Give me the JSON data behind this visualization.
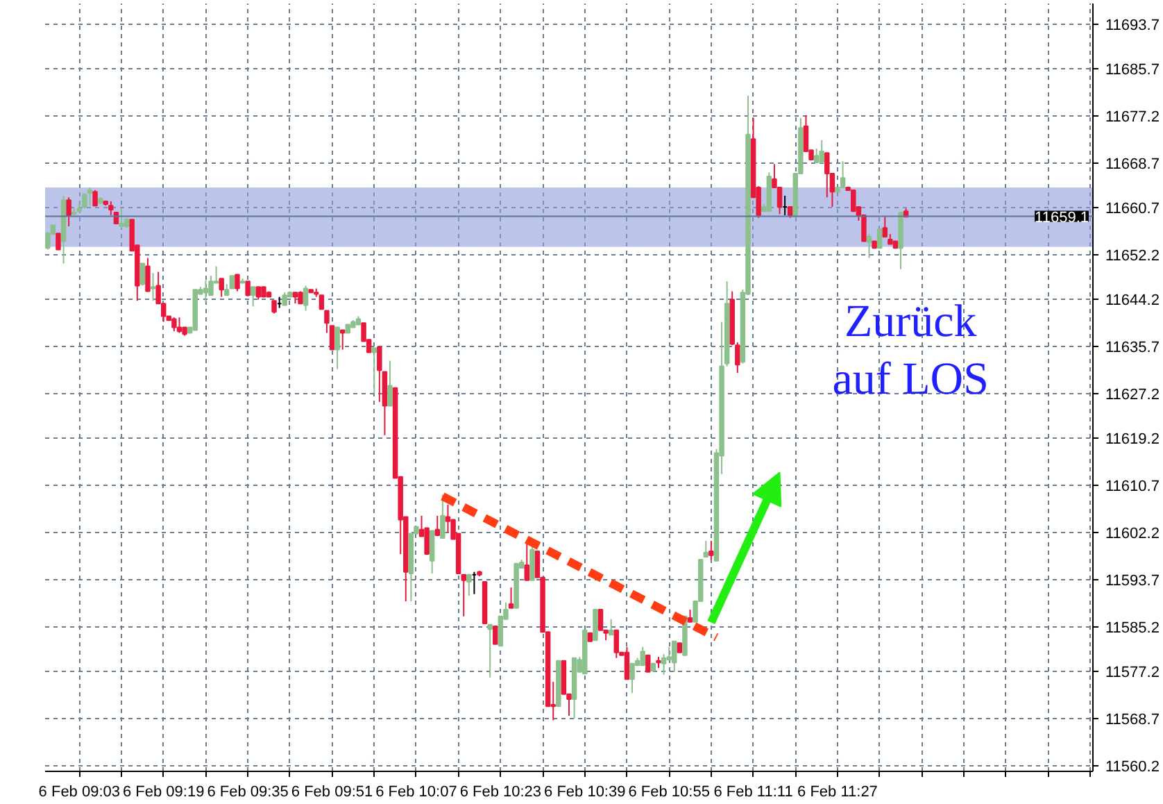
{
  "chart_data": {
    "type": "candlestick",
    "categories": [
      null,
      null,
      null,
      null,
      null,
      null,
      "6 Feb 09:03",
      null,
      null,
      null,
      null,
      null,
      null,
      null,
      null,
      null,
      null,
      null,
      null,
      null,
      null,
      null,
      "6 Feb 09:19",
      null,
      null,
      null,
      null,
      null,
      null,
      null,
      null,
      null,
      null,
      null,
      null,
      null,
      null,
      null,
      "6 Feb 09:35",
      null,
      null,
      null,
      null,
      null,
      null,
      null,
      null,
      null,
      null,
      null,
      null,
      null,
      null,
      null,
      "6 Feb 09:51",
      null,
      null,
      null,
      null,
      null,
      null,
      null,
      null,
      null,
      null,
      null,
      null,
      null,
      null,
      null,
      "6 Feb 10:07",
      null,
      null,
      null,
      null,
      null,
      null,
      null,
      null,
      null,
      null,
      null,
      null,
      null,
      null,
      null,
      "6 Feb 10:23",
      null,
      null,
      null,
      null,
      null,
      null,
      null,
      null,
      null,
      null,
      null,
      null,
      null,
      null,
      null,
      "6 Feb 10:39",
      null,
      null,
      null,
      null,
      null,
      null,
      null,
      null,
      null,
      null,
      null,
      null,
      null,
      null,
      null,
      "6 Feb 10:55",
      null,
      null,
      null,
      null,
      null,
      null,
      null,
      null,
      null,
      null,
      null,
      null,
      null,
      null,
      null,
      "6 Feb 11:11",
      null,
      null,
      null,
      null,
      null,
      null,
      null,
      null,
      null,
      null,
      null,
      null,
      null,
      null,
      null,
      "6 Feb 11:27",
      null,
      null,
      null,
      null,
      null,
      null,
      null,
      null,
      null,
      null,
      null,
      null,
      null,
      null,
      null,
      null,
      null,
      null,
      null,
      null,
      null,
      null,
      null,
      null,
      null,
      null,
      null,
      null,
      null,
      null,
      null,
      null,
      null,
      null,
      null,
      null,
      null,
      null,
      null,
      null,
      null,
      null,
      null,
      null,
      null,
      null,
      null,
      null
    ],
    "ohlc": [
      [
        11653.4,
        11656.3,
        11653.1,
        11656.0
      ],
      [
        11655.9,
        11657.5,
        11655.9,
        11657.5
      ],
      [
        11656.0,
        11656.0,
        11653.1,
        11653.1
      ],
      [
        11654.6,
        11662.8,
        11650.6,
        11662.0
      ],
      [
        11662.0,
        11662.5,
        11657.3,
        11659.3
      ],
      [
        11659.5,
        11660.5,
        11659.3,
        11659.8
      ],
      [
        11660.0,
        11661.8,
        11659.8,
        11660.5
      ],
      [
        11660.8,
        11663.3,
        11660.5,
        11663.0
      ],
      [
        11663.3,
        11664.3,
        11661.0,
        11663.8
      ],
      [
        11663.5,
        11663.8,
        11661.0,
        11661.0
      ],
      [
        11661.5,
        11662.5,
        11661.3,
        11662.3
      ],
      [
        11661.8,
        11661.8,
        11661.0,
        11661.3
      ],
      [
        11661.0,
        11661.8,
        11659.3,
        11660.3
      ],
      [
        11659.8,
        11659.8,
        11657.8,
        11657.8
      ],
      [
        11657.3,
        11660.5,
        11657.0,
        11657.8
      ],
      [
        11657.3,
        11658.8,
        11657.0,
        11658.5
      ],
      [
        11658.5,
        11658.5,
        11652.9,
        11652.9
      ],
      [
        11653.9,
        11653.9,
        11643.9,
        11646.6
      ],
      [
        11646.9,
        11650.6,
        11646.6,
        11650.6
      ],
      [
        11650.1,
        11651.6,
        11645.6,
        11645.6
      ],
      [
        11646.1,
        11648.9,
        11643.9,
        11646.4
      ],
      [
        11646.6,
        11649.1,
        11643.4,
        11643.4
      ],
      [
        11643.4,
        11643.4,
        11640.1,
        11641.1
      ],
      [
        11641.1,
        11641.1,
        11640.4,
        11640.4
      ],
      [
        11640.6,
        11640.9,
        11638.4,
        11639.1
      ],
      [
        11639.1,
        11640.9,
        11638.1,
        11638.4
      ],
      [
        11639.1,
        11639.1,
        11637.6,
        11637.9
      ],
      [
        11638.1,
        11639.1,
        11638.1,
        11639.1
      ],
      [
        11638.6,
        11645.9,
        11638.6,
        11645.9
      ],
      [
        11645.1,
        11646.4,
        11645.1,
        11645.9
      ],
      [
        11645.4,
        11647.6,
        11643.6,
        11646.1
      ],
      [
        11644.9,
        11648.4,
        11644.9,
        11647.4
      ],
      [
        11647.1,
        11650.1,
        11647.1,
        11647.4
      ],
      [
        11647.9,
        11647.9,
        11644.6,
        11645.9
      ],
      [
        11644.9,
        11646.9,
        11644.9,
        11645.9
      ],
      [
        11646.1,
        11648.4,
        11646.1,
        11648.4
      ],
      [
        11648.6,
        11648.6,
        11645.6,
        11646.1
      ],
      [
        11647.1,
        11647.9,
        11647.1,
        11647.4
      ],
      [
        11647.4,
        11647.4,
        11644.9,
        11644.9
      ],
      [
        11644.9,
        11646.4,
        11642.9,
        11646.4
      ],
      [
        11646.4,
        11646.4,
        11644.1,
        11644.6
      ],
      [
        11646.4,
        11646.4,
        11644.6,
        11644.6
      ],
      [
        11645.4,
        11645.6,
        11644.6,
        11644.6
      ],
      [
        11643.9,
        11643.9,
        11641.6,
        11641.9
      ],
      [
        11643.4,
        11644.6,
        11642.6,
        11643.4
      ],
      [
        11643.1,
        11645.4,
        11643.1,
        11644.9
      ],
      [
        11644.6,
        11645.6,
        11644.6,
        11645.4
      ],
      [
        11645.4,
        11645.4,
        11643.4,
        11644.6
      ],
      [
        11645.4,
        11645.6,
        11643.4,
        11643.4
      ],
      [
        11643.1,
        11646.6,
        11642.1,
        11646.1
      ],
      [
        11645.9,
        11645.9,
        11645.4,
        11645.4
      ],
      [
        11645.4,
        11646.1,
        11644.6,
        11645.1
      ],
      [
        11644.9,
        11644.9,
        11642.4,
        11642.4
      ],
      [
        11642.1,
        11642.1,
        11638.1,
        11639.9
      ],
      [
        11639.4,
        11639.4,
        11635.1,
        11635.1
      ],
      [
        11635.1,
        11639.1,
        11631.6,
        11639.1
      ],
      [
        11638.6,
        11638.6,
        11635.1,
        11638.1
      ],
      [
        11638.1,
        11639.6,
        11638.1,
        11639.6
      ],
      [
        11639.1,
        11640.4,
        11639.1,
        11640.1
      ],
      [
        11639.6,
        11641.1,
        11639.6,
        11640.6
      ],
      [
        11639.9,
        11639.9,
        11636.6,
        11636.6
      ],
      [
        11636.9,
        11636.9,
        11634.6,
        11634.6
      ],
      [
        11634.6,
        11635.4,
        11627.2,
        11635.4
      ],
      [
        11635.6,
        11635.6,
        11625.7,
        11631.4
      ],
      [
        11631.1,
        11631.1,
        11619.7,
        11625.0
      ],
      [
        11625.0,
        11633.1,
        11625.0,
        11628.6
      ],
      [
        11628.2,
        11628.2,
        11612.0,
        11612.0
      ],
      [
        11612.2,
        11612.2,
        11598.3,
        11604.5
      ],
      [
        11605.0,
        11605.0,
        11589.8,
        11595.1
      ],
      [
        11594.8,
        11602.0,
        11589.8,
        11602.0
      ],
      [
        11602.0,
        11603.2,
        11602.0,
        11603.2
      ],
      [
        11602.7,
        11605.2,
        11601.5,
        11601.5
      ],
      [
        11603.0,
        11603.0,
        11598.3,
        11598.3
      ],
      [
        11597.1,
        11602.5,
        11594.8,
        11602.5
      ],
      [
        11602.7,
        11605.2,
        11601.7,
        11601.7
      ],
      [
        11601.2,
        11609.0,
        11601.2,
        11605.2
      ],
      [
        11605.0,
        11607.2,
        11602.2,
        11604.2
      ],
      [
        11604.5,
        11604.5,
        11601.0,
        11601.0
      ],
      [
        11602.0,
        11602.0,
        11594.8,
        11594.8
      ],
      [
        11594.6,
        11594.6,
        11587.1,
        11593.6
      ],
      [
        11593.3,
        11594.6,
        11590.8,
        11594.6
      ],
      [
        11594.6,
        11595.1,
        11591.1,
        11594.6
      ],
      [
        11595.1,
        11595.3,
        11594.3,
        11594.6
      ],
      [
        11593.3,
        11593.3,
        11585.8,
        11585.8
      ],
      [
        11584.8,
        11585.6,
        11576.1,
        11585.6
      ],
      [
        11585.3,
        11585.3,
        11582.1,
        11582.1
      ],
      [
        11581.8,
        11587.1,
        11581.8,
        11587.1
      ],
      [
        11586.6,
        11589.6,
        11586.6,
        11588.3
      ],
      [
        11589.3,
        11592.3,
        11588.6,
        11588.6
      ],
      [
        11588.6,
        11596.6,
        11588.6,
        11596.6
      ],
      [
        11595.8,
        11597.3,
        11595.8,
        11596.8
      ],
      [
        11596.3,
        11600.3,
        11593.6,
        11593.6
      ],
      [
        11593.6,
        11599.6,
        11593.6,
        11599.1
      ],
      [
        11598.8,
        11598.8,
        11594.1,
        11594.1
      ],
      [
        11594.1,
        11594.1,
        11584.3,
        11584.3
      ],
      [
        11584.3,
        11584.3,
        11570.9,
        11570.9
      ],
      [
        11571.2,
        11575.3,
        11568.4,
        11570.9
      ],
      [
        11570.9,
        11579.1,
        11570.9,
        11579.1
      ],
      [
        11579.1,
        11579.1,
        11573.1,
        11573.1
      ],
      [
        11573.1,
        11573.1,
        11569.2,
        11572.2
      ],
      [
        11572.2,
        11579.6,
        11568.7,
        11579.6
      ],
      [
        11577.1,
        11579.8,
        11577.1,
        11579.3
      ],
      [
        11576.8,
        11584.6,
        11576.8,
        11584.6
      ],
      [
        11584.1,
        11584.1,
        11582.6,
        11582.6
      ],
      [
        11582.8,
        11588.3,
        11582.8,
        11588.3
      ],
      [
        11588.3,
        11588.3,
        11584.6,
        11584.6
      ],
      [
        11584.6,
        11584.6,
        11582.8,
        11584.1
      ],
      [
        11583.8,
        11586.6,
        11583.8,
        11584.6
      ],
      [
        11584.6,
        11584.6,
        11579.6,
        11580.6
      ],
      [
        11580.6,
        11580.6,
        11580.1,
        11580.1
      ],
      [
        11580.6,
        11581.6,
        11575.8,
        11575.8
      ],
      [
        11575.8,
        11578.6,
        11573.3,
        11578.6
      ],
      [
        11578.3,
        11579.6,
        11578.3,
        11579.1
      ],
      [
        11578.3,
        11581.6,
        11578.3,
        11580.8
      ],
      [
        11580.1,
        11580.1,
        11577.1,
        11577.1
      ],
      [
        11577.3,
        11578.6,
        11577.3,
        11578.6
      ],
      [
        11579.1,
        11579.8,
        11577.8,
        11578.8
      ],
      [
        11578.6,
        11580.3,
        11576.6,
        11579.6
      ],
      [
        11579.3,
        11581.6,
        11579.3,
        11579.8
      ],
      [
        11578.8,
        11582.6,
        11577.1,
        11582.6
      ],
      [
        11582.3,
        11582.3,
        11580.6,
        11580.6
      ],
      [
        11580.1,
        11587.1,
        11580.1,
        11587.1
      ],
      [
        11586.8,
        11588.3,
        11586.1,
        11586.1
      ],
      [
        11586.1,
        11589.8,
        11586.1,
        11589.8
      ],
      [
        11589.8,
        11597.3,
        11589.8,
        11597.3
      ],
      [
        11597.8,
        11600.7,
        11597.8,
        11598.6
      ],
      [
        11598.8,
        11600.7,
        11597.3,
        11598.1
      ],
      [
        11597.1,
        11617.2,
        11597.1,
        11616.5
      ],
      [
        11616.0,
        11640.1,
        11612.7,
        11632.1
      ],
      [
        11632.6,
        11647.4,
        11632.1,
        11643.4
      ],
      [
        11644.1,
        11645.6,
        11635.9,
        11636.1
      ],
      [
        11635.9,
        11636.4,
        11630.9,
        11632.4
      ],
      [
        11632.9,
        11645.9,
        11632.6,
        11645.4
      ],
      [
        11645.1,
        11680.8,
        11644.9,
        11673.8
      ],
      [
        11673.0,
        11676.8,
        11662.5,
        11662.5
      ],
      [
        11664.3,
        11664.5,
        11658.8,
        11659.3
      ],
      [
        11660.0,
        11661.3,
        11660.0,
        11660.8
      ],
      [
        11660.0,
        11667.0,
        11660.0,
        11666.3
      ],
      [
        11665.8,
        11668.5,
        11664.3,
        11664.3
      ],
      [
        11664.3,
        11664.3,
        11659.5,
        11660.8
      ],
      [
        11660.8,
        11662.8,
        11659.3,
        11660.8
      ],
      [
        11660.8,
        11660.8,
        11658.8,
        11659.3
      ],
      [
        11659.3,
        11666.8,
        11658.8,
        11666.8
      ],
      [
        11666.8,
        11676.8,
        11666.8,
        11675.0
      ],
      [
        11675.3,
        11677.3,
        11670.8,
        11670.8
      ],
      [
        11671.0,
        11671.0,
        11669.3,
        11669.3
      ],
      [
        11668.8,
        11671.3,
        11668.8,
        11670.0
      ],
      [
        11668.8,
        11672.8,
        11668.8,
        11670.8
      ],
      [
        11670.5,
        11670.5,
        11662.5,
        11666.8
      ],
      [
        11666.8,
        11666.8,
        11660.8,
        11663.5
      ],
      [
        11663.5,
        11664.3,
        11663.5,
        11664.3
      ],
      [
        11664.3,
        11669.0,
        11664.3,
        11666.0
      ],
      [
        11664.3,
        11664.3,
        11663.8,
        11663.8
      ],
      [
        11663.8,
        11663.8,
        11660.0,
        11660.0
      ],
      [
        11660.8,
        11660.8,
        11658.3,
        11659.3
      ],
      [
        11659.3,
        11659.3,
        11654.6,
        11654.6
      ],
      [
        11654.4,
        11655.9,
        11651.6,
        11655.4
      ],
      [
        11654.6,
        11654.6,
        11653.4,
        11653.4
      ],
      [
        11653.4,
        11656.8,
        11653.4,
        11656.8
      ],
      [
        11657.0,
        11659.0,
        11655.4,
        11655.4
      ],
      [
        11654.9,
        11655.9,
        11654.1,
        11654.1
      ],
      [
        11654.6,
        11654.6,
        11653.4,
        11653.4
      ],
      [
        11653.4,
        11659.8,
        11649.6,
        11659.8
      ],
      [
        11660.0,
        11660.5,
        11659.0,
        11659.0
      ],
      null,
      null,
      null,
      null,
      null,
      null,
      null,
      null,
      null,
      null,
      null,
      null,
      null,
      null,
      null,
      null,
      null,
      null,
      null,
      null,
      null,
      null,
      null,
      null,
      null,
      null,
      null,
      null,
      null,
      null,
      null,
      null,
      null,
      null,
      null
    ],
    "colors": [
      "#8cc08c",
      "#8cc08c",
      "#e8183c",
      "#8cc08c",
      "#e8183c",
      "#8cc08c",
      "#8cc08c",
      "#8cc08c",
      "#8cc08c",
      "#e8183c",
      "#8cc08c",
      "#e8183c",
      "#e8183c",
      "#e8183c",
      "#8cc08c",
      "#8cc08c",
      "#e8183c",
      "#e8183c",
      "#8cc08c",
      "#e8183c",
      "#8cc08c",
      "#e8183c",
      "#e8183c",
      "#e8183c",
      "#e8183c",
      "#e8183c",
      "#e8183c",
      "#8cc08c",
      "#8cc08c",
      "#8cc08c",
      "#8cc08c",
      "#8cc08c",
      "#8cc08c",
      "#e8183c",
      "#8cc08c",
      "#8cc08c",
      "#e8183c",
      "#8cc08c",
      "#e8183c",
      "#8cc08c",
      "#e8183c",
      "#e8183c",
      "#e8183c",
      "#e8183c",
      "#000000",
      "#8cc08c",
      "#8cc08c",
      "#e8183c",
      "#e8183c",
      "#8cc08c",
      "#e8183c",
      "#e8183c",
      "#e8183c",
      "#e8183c",
      "#e8183c",
      "#8cc08c",
      "#e8183c",
      "#8cc08c",
      "#8cc08c",
      "#8cc08c",
      "#e8183c",
      "#e8183c",
      "#8cc08c",
      "#e8183c",
      "#e8183c",
      "#8cc08c",
      "#e8183c",
      "#e8183c",
      "#e8183c",
      "#8cc08c",
      "#8cc08c",
      "#e8183c",
      "#e8183c",
      "#8cc08c",
      "#e8183c",
      "#8cc08c",
      "#e8183c",
      "#e8183c",
      "#e8183c",
      "#e8183c",
      "#8cc08c",
      "#000000",
      "#e8183c",
      "#e8183c",
      "#8cc08c",
      "#e8183c",
      "#8cc08c",
      "#8cc08c",
      "#e8183c",
      "#8cc08c",
      "#8cc08c",
      "#e8183c",
      "#8cc08c",
      "#e8183c",
      "#e8183c",
      "#e8183c",
      "#e8183c",
      "#8cc08c",
      "#e8183c",
      "#e8183c",
      "#8cc08c",
      "#8cc08c",
      "#8cc08c",
      "#e8183c",
      "#8cc08c",
      "#e8183c",
      "#e8183c",
      "#8cc08c",
      "#e8183c",
      "#e8183c",
      "#e8183c",
      "#8cc08c",
      "#8cc08c",
      "#8cc08c",
      "#e8183c",
      "#8cc08c",
      "#e8183c",
      "#8cc08c",
      "#8cc08c",
      "#8cc08c",
      "#e8183c",
      "#8cc08c",
      "#e8183c",
      "#8cc08c",
      "#8cc08c",
      "#8cc08c",
      "#e8183c",
      "#8cc08c",
      "#8cc08c",
      "#8cc08c",
      "#e8183c",
      "#e8183c",
      "#8cc08c",
      "#8cc08c",
      "#e8183c",
      "#e8183c",
      "#8cc08c",
      "#8cc08c",
      "#e8183c",
      "#e8183c",
      "#000000",
      "#e8183c",
      "#8cc08c",
      "#8cc08c",
      "#e8183c",
      "#e8183c",
      "#8cc08c",
      "#8cc08c",
      "#e8183c",
      "#e8183c",
      "#8cc08c",
      "#8cc08c",
      "#e8183c",
      "#e8183c",
      "#e8183c",
      "#e8183c",
      "#8cc08c",
      "#e8183c",
      "#8cc08c",
      "#e8183c",
      "#e8183c",
      "#e8183c",
      "#8cc08c",
      "#e8183c",
      null,
      null,
      null,
      null,
      null,
      null,
      null,
      null,
      null,
      null,
      null,
      null,
      null,
      null,
      null,
      null,
      null,
      null,
      null,
      null,
      null,
      null,
      null,
      null,
      null,
      null,
      null,
      null,
      null,
      null,
      null,
      null,
      null,
      null,
      null
    ],
    "series": [
      {
        "type": "line",
        "color": "#ff3c14",
        "line_style": "dashed",
        "values": [
          null,
          null,
          null,
          null,
          null,
          null,
          null,
          null,
          null,
          null,
          null,
          null,
          null,
          null,
          null,
          null,
          null,
          null,
          null,
          null,
          null,
          null,
          null,
          null,
          null,
          null,
          null,
          null,
          null,
          null,
          null,
          null,
          null,
          null,
          null,
          null,
          null,
          null,
          null,
          null,
          null,
          null,
          null,
          null,
          null,
          null,
          null,
          null,
          null,
          null,
          null,
          null,
          null,
          null,
          null,
          null,
          null,
          null,
          null,
          null,
          null,
          null,
          null,
          null,
          null,
          null,
          null,
          null,
          null,
          null,
          null,
          null,
          null,
          null,
          null,
          11608.7,
          null,
          null,
          null,
          null,
          null,
          null,
          null,
          null,
          null,
          null,
          null,
          null,
          null,
          null,
          null,
          null,
          null,
          null,
          null,
          null,
          null,
          null,
          null,
          null,
          null,
          null,
          null,
          null,
          null,
          null,
          null,
          null,
          null,
          null,
          null,
          null,
          null,
          null,
          null,
          null,
          null,
          null,
          null,
          null,
          null,
          null,
          null,
          null,
          null,
          null,
          null,
          11583.3,
          null,
          null,
          null,
          null,
          null,
          null,
          null,
          null,
          null,
          null,
          null,
          null,
          null,
          null,
          null,
          null,
          null,
          null,
          null,
          null,
          null,
          null,
          null,
          null,
          null,
          null,
          null,
          null,
          null,
          null,
          null,
          null,
          null,
          null,
          null,
          null,
          null,
          null,
          null,
          null,
          null,
          null,
          null,
          null,
          null,
          null,
          null,
          null,
          null,
          null,
          null,
          null,
          null,
          null,
          null,
          null,
          null,
          null,
          null,
          null,
          null,
          null,
          null,
          null,
          null,
          null,
          null,
          null,
          null,
          null,
          null
        ]
      }
    ],
    "ylim": [
      11559.2,
      11697.4
    ],
    "yticks": [
      11560.2,
      11568.7,
      11577.2,
      11585.2,
      11593.7,
      11602.2,
      11610.7,
      11619.2,
      11627.2,
      11635.7,
      11644.2,
      11652.2,
      11660.7,
      11668.7,
      11677.2,
      11685.7,
      11693.7
    ],
    "grid": true,
    "ref_lines": [
      {
        "axis": "y",
        "value": 11659.1,
        "label": "11659.1",
        "color": "#5f7395"
      }
    ],
    "bands": [
      {
        "axis": "y",
        "from": 11653.6,
        "to": 11664.3,
        "color": "#8f9cdc"
      }
    ],
    "annotations": [
      "Zurück\nauf LOS"
    ]
  }
}
